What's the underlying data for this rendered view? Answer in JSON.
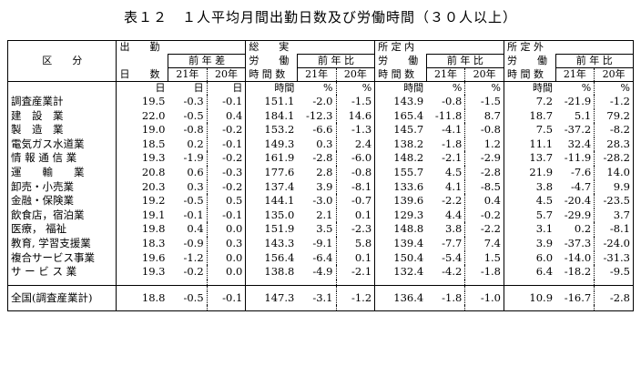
{
  "title": "表１２　１人平均月間出勤日数及び労働時間（３０人以上）",
  "headers": {
    "category": "区　　分",
    "days_top": "出　　勤",
    "days_bottom": "日　　数",
    "days_diff": "前 年 差",
    "total_top": "総　　実",
    "total_mid": "労　　働",
    "total_bottom": "時 間 数",
    "sched_top": "所 定 内",
    "sched_mid": "労　　働",
    "sched_bottom": "時 間 数",
    "over_top": "所 定 外",
    "over_mid": "労　　働",
    "over_bottom": "時 間 数",
    "yoy": "前 年 比",
    "y21": "21年",
    "y20": "20年"
  },
  "units": [
    "日",
    "日",
    "日",
    "時間",
    "%",
    "%",
    "時間",
    "%",
    "%",
    "時間",
    "%",
    "%"
  ],
  "rows": [
    {
      "label": "調査産業計",
      "v": [
        "19.5",
        "-0.3",
        "-0.1",
        "151.1",
        "-2.0",
        "-1.5",
        "143.9",
        "-0.8",
        "-1.5",
        "7.2",
        "-21.9",
        "-1.2"
      ]
    },
    {
      "label": "建　設　業",
      "v": [
        "22.0",
        "-0.5",
        "0.4",
        "184.1",
        "-12.3",
        "14.6",
        "165.4",
        "-11.8",
        "8.7",
        "18.7",
        "5.1",
        "79.2"
      ]
    },
    {
      "label": "製　造　業",
      "v": [
        "19.0",
        "-0.8",
        "-0.2",
        "153.2",
        "-6.6",
        "-1.3",
        "145.7",
        "-4.1",
        "-0.8",
        "7.5",
        "-37.2",
        "-8.2"
      ]
    },
    {
      "label": "電気ガス水道業",
      "v": [
        "18.5",
        "0.2",
        "-0.1",
        "149.3",
        "0.3",
        "2.4",
        "138.2",
        "-1.8",
        "1.2",
        "11.1",
        "32.4",
        "28.3"
      ]
    },
    {
      "label": "情 報 通 信 業",
      "v": [
        "19.3",
        "-1.9",
        "-0.2",
        "161.9",
        "-2.8",
        "-6.0",
        "148.2",
        "-2.1",
        "-2.9",
        "13.7",
        "-11.9",
        "-28.2"
      ]
    },
    {
      "label": "運　　輸　　業",
      "v": [
        "20.8",
        "0.6",
        "-0.3",
        "177.6",
        "2.8",
        "-0.8",
        "155.7",
        "4.5",
        "-2.8",
        "21.9",
        "-7.6",
        "14.0"
      ]
    },
    {
      "label": "卸売・小売業",
      "v": [
        "20.3",
        "0.3",
        "-0.2",
        "137.4",
        "3.9",
        "-8.1",
        "133.6",
        "4.1",
        "-8.5",
        "3.8",
        "-4.7",
        "9.9"
      ]
    },
    {
      "label": "金融・保険業",
      "v": [
        "19.2",
        "-0.5",
        "0.5",
        "144.1",
        "-3.0",
        "-0.7",
        "139.6",
        "-2.2",
        "0.4",
        "4.5",
        "-20.4",
        "-23.5"
      ]
    },
    {
      "label": "飲食店，宿泊業",
      "v": [
        "19.1",
        "-0.1",
        "-0.1",
        "135.0",
        "2.1",
        "0.1",
        "129.3",
        "4.4",
        "-0.2",
        "5.7",
        "-29.9",
        "3.7"
      ]
    },
    {
      "label": "医療， 福祉",
      "v": [
        "19.8",
        "0.4",
        "0.0",
        "151.9",
        "3.5",
        "-2.3",
        "148.8",
        "3.8",
        "-2.2",
        "3.1",
        "0.2",
        "-8.1"
      ]
    },
    {
      "label": "教育, 学習支援業",
      "v": [
        "18.3",
        "-0.9",
        "0.3",
        "143.3",
        "-9.1",
        "5.8",
        "139.4",
        "-7.7",
        "7.4",
        "3.9",
        "-37.3",
        "-24.0"
      ]
    },
    {
      "label": "複合サービス事業",
      "v": [
        "19.6",
        "-1.2",
        "0.0",
        "156.4",
        "-6.4",
        "0.1",
        "150.4",
        "-5.4",
        "1.5",
        "6.0",
        "-14.0",
        "-31.3"
      ]
    },
    {
      "label": "サ ー ビ ス 業",
      "v": [
        "19.3",
        "-0.2",
        "0.0",
        "138.8",
        "-4.9",
        "-2.1",
        "132.4",
        "-4.2",
        "-1.8",
        "6.4",
        "-18.2",
        "-9.5"
      ]
    }
  ],
  "total": {
    "label": "全国(調査産業計)",
    "v": [
      "18.8",
      "-0.5",
      "-0.1",
      "147.3",
      "-3.1",
      "-1.2",
      "136.4",
      "-1.8",
      "-1.0",
      "10.9",
      "-16.7",
      "-2.8"
    ]
  }
}
